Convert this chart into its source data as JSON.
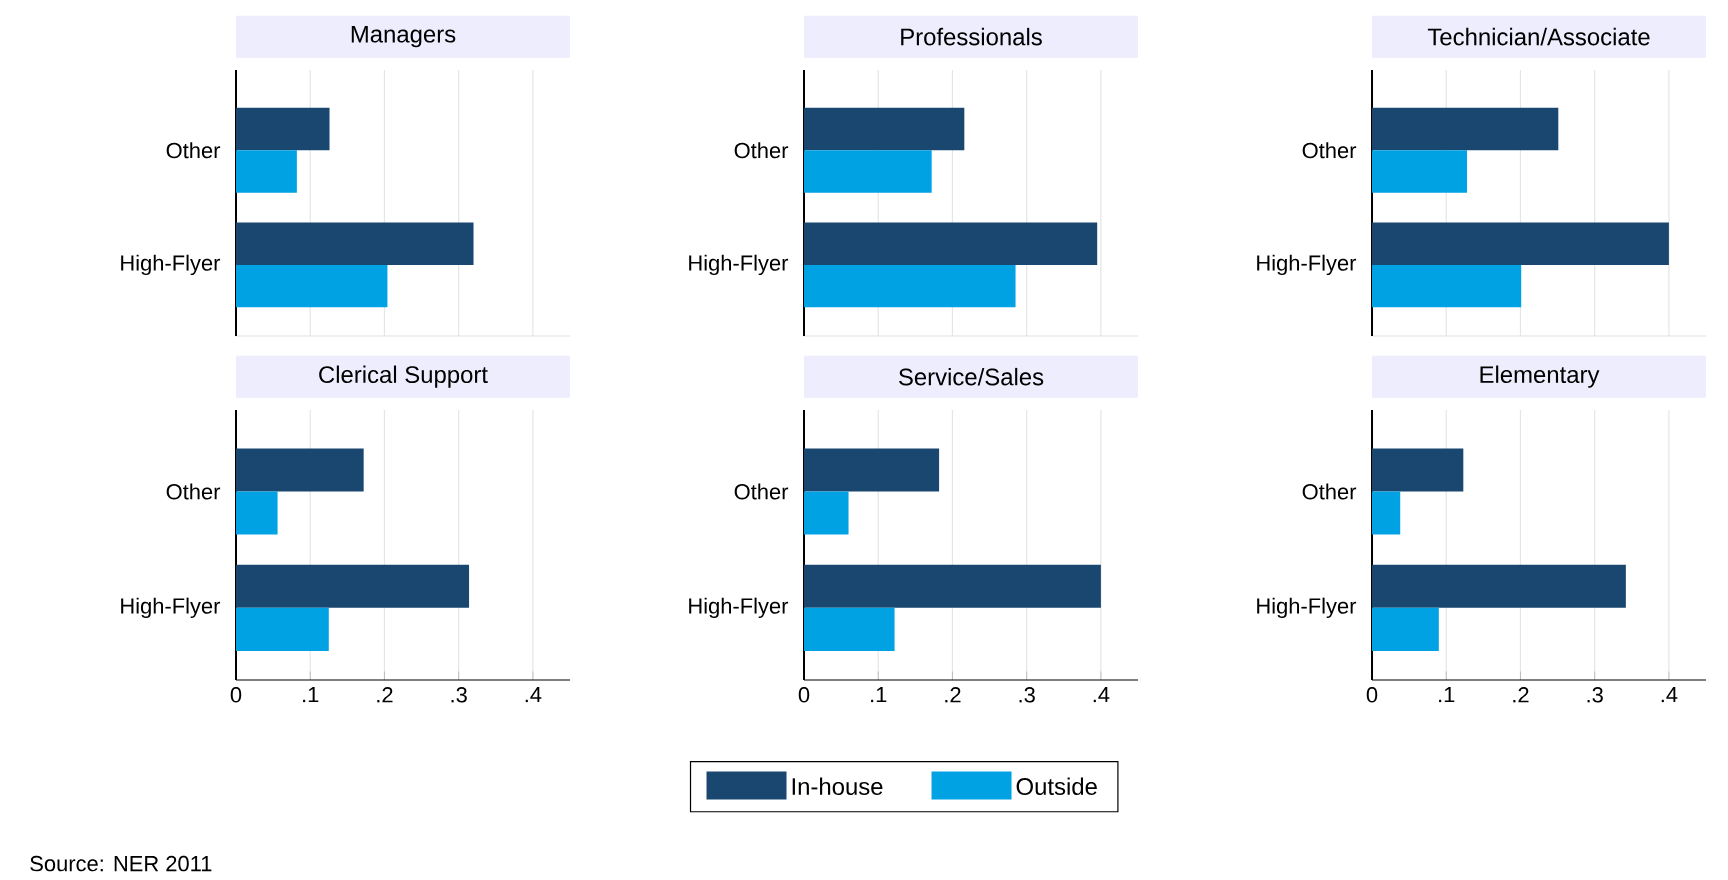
{
  "chart_data": [
    {
      "type": "bar",
      "orientation": "horizontal",
      "title": "Managers",
      "categories": [
        "Other",
        "High-Flyer"
      ],
      "series": [
        {
          "color": "#1a476f",
          "values": [
            0.126,
            0.32
          ]
        },
        {
          "color": "#00a2e3",
          "values": [
            0.082,
            0.204
          ]
        }
      ],
      "xlim": [
        0,
        0.45
      ],
      "xticks": [
        {
          "value": 0.1,
          "label": null
        },
        {
          "value": 0.2,
          "label": null
        },
        {
          "value": 0.3,
          "label": null
        },
        {
          "value": 0.4,
          "label": null
        }
      ],
      "grid": "x",
      "tick_labels": "y"
    },
    {
      "type": "bar",
      "orientation": "horizontal",
      "title": "Professionals",
      "categories": [
        "Other",
        "High-Flyer"
      ],
      "series": [
        {
          "color": "#1a476f",
          "values": [
            0.216,
            0.395
          ]
        },
        {
          "color": "#00a2e3",
          "values": [
            0.172,
            0.285
          ]
        }
      ],
      "xlim": [
        0,
        0.45
      ],
      "xticks": [
        {
          "value": 0.1,
          "label": null
        },
        {
          "value": 0.2,
          "label": null
        },
        {
          "value": 0.3,
          "label": null
        },
        {
          "value": 0.4,
          "label": null
        }
      ],
      "grid": "x",
      "tick_labels": "y"
    },
    {
      "type": "bar",
      "orientation": "horizontal",
      "title": "Technician/Associate",
      "categories": [
        "Other",
        "High-Flyer"
      ],
      "series": [
        {
          "color": "#1a476f",
          "values": [
            0.251,
            0.4
          ]
        },
        {
          "color": "#00a2e3",
          "values": [
            0.128,
            0.201
          ]
        }
      ],
      "xlim": [
        0,
        0.45
      ],
      "xticks": [
        {
          "value": 0.1,
          "label": null
        },
        {
          "value": 0.2,
          "label": null
        },
        {
          "value": 0.3,
          "label": null
        },
        {
          "value": 0.4,
          "label": null
        }
      ],
      "grid": "x",
      "tick_labels": "y"
    },
    {
      "type": "bar",
      "orientation": "horizontal",
      "title": "Clerical Support",
      "categories": [
        "Other",
        "High-Flyer"
      ],
      "series": [
        {
          "color": "#1a476f",
          "values": [
            0.172,
            0.314
          ]
        },
        {
          "color": "#00a2e3",
          "values": [
            0.056,
            0.125
          ]
        }
      ],
      "xlim": [
        0,
        0.45
      ],
      "xticks": [
        0,
        {
          "value": 0.1,
          "label": ".1"
        },
        {
          "value": 0.2,
          "label": ".2"
        },
        {
          "value": 0.3,
          "label": ".3"
        },
        {
          "value": 0.4,
          "label": ".4"
        }
      ],
      "grid": "x",
      "annotations": [
        "Source:  NER 2011"
      ]
    },
    {
      "type": "bar",
      "orientation": "horizontal",
      "title": "Service/Sales",
      "categories": [
        "Other",
        "High-Flyer"
      ],
      "series": [
        {
          "name": "In-house",
          "color": "#1a476f",
          "values": [
            0.182,
            0.4
          ]
        },
        {
          "name": "Outside",
          "color": "#00a2e3",
          "values": [
            0.06,
            0.122
          ]
        }
      ],
      "xlim": [
        0,
        0.45
      ],
      "xticks": [
        0,
        {
          "value": 0.1,
          "label": ".1"
        },
        {
          "value": 0.2,
          "label": ".2"
        },
        {
          "value": 0.3,
          "label": ".3"
        },
        {
          "value": 0.4,
          "label": ".4"
        }
      ],
      "grid": "x",
      "legend": "bottom"
    },
    {
      "type": "bar",
      "orientation": "horizontal",
      "title": "Elementary",
      "categories": [
        "Other",
        "High-Flyer"
      ],
      "series": [
        {
          "color": "#1a476f",
          "values": [
            0.123,
            0.342
          ]
        },
        {
          "color": "#00a2e3",
          "values": [
            0.038,
            0.09
          ]
        }
      ],
      "xlim": [
        0,
        0.45
      ],
      "xticks": [
        0,
        {
          "value": 0.1,
          "label": ".1"
        },
        {
          "value": 0.2,
          "label": ".2"
        },
        {
          "value": 0.3,
          "label": ".3"
        },
        {
          "value": 0.4,
          "label": ".4"
        }
      ],
      "grid": "x"
    }
  ]
}
